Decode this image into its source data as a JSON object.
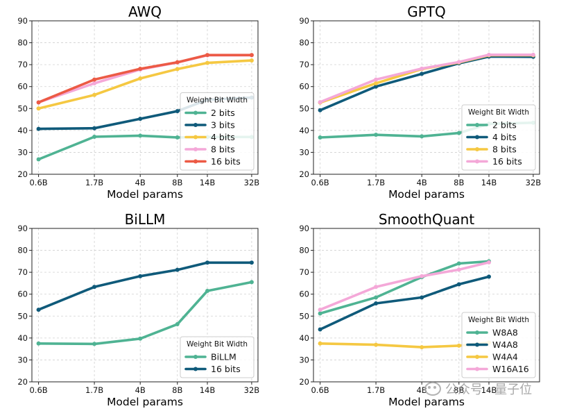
{
  "chart_data": [
    {
      "type": "line",
      "title": "AWQ",
      "xlabel": "Model params",
      "ylabel": "",
      "ylim": [
        20,
        90
      ],
      "yticks": [
        20,
        30,
        40,
        50,
        60,
        70,
        80,
        90
      ],
      "x_scale": "log",
      "x": [
        0.6,
        1.7,
        4,
        8,
        14,
        32
      ],
      "xtick_labels": [
        "0.6B",
        "1.7B",
        "4B",
        "8B",
        "14B",
        "32B"
      ],
      "grid": true,
      "legend_title": "Weight Bit Width",
      "legend_position": "lower-right",
      "series": [
        {
          "name": "2 bits",
          "color": "#4fb393",
          "values": [
            26.8,
            37.1,
            37.6,
            36.8,
            37.0,
            37.0
          ]
        },
        {
          "name": "3 bits",
          "color": "#0f5a7a",
          "values": [
            40.7,
            41.0,
            45.3,
            48.8,
            54.0,
            55.0
          ]
        },
        {
          "name": "4 bits",
          "color": "#f5c842",
          "values": [
            50.0,
            56.2,
            63.7,
            68.0,
            70.8,
            71.9
          ]
        },
        {
          "name": "8 bits",
          "color": "#f4a8d8",
          "values": [
            52.8,
            61.5,
            67.8,
            71.0,
            74.3,
            74.3
          ]
        },
        {
          "name": "16 bits",
          "color": "#ec5a45",
          "values": [
            52.8,
            63.2,
            68.1,
            71.1,
            74.4,
            74.4
          ]
        }
      ]
    },
    {
      "type": "line",
      "title": "GPTQ",
      "xlabel": "Model params",
      "ylabel": "",
      "ylim": [
        20,
        90
      ],
      "yticks": [
        20,
        30,
        40,
        50,
        60,
        70,
        80,
        90
      ],
      "x_scale": "log",
      "x": [
        0.6,
        1.7,
        4,
        8,
        14,
        32
      ],
      "xtick_labels": [
        "0.6B",
        "1.7B",
        "4B",
        "8B",
        "14B",
        "32B"
      ],
      "grid": true,
      "legend_title": "Weight Bit Width",
      "legend_position": "lower-right",
      "series": [
        {
          "name": "2 bits",
          "color": "#4fb393",
          "values": [
            36.8,
            38.0,
            37.3,
            38.8,
            43.0,
            43.5
          ]
        },
        {
          "name": "4 bits",
          "color": "#0f5a7a",
          "values": [
            49.2,
            60.0,
            65.8,
            70.6,
            73.7,
            73.6
          ]
        },
        {
          "name": "8 bits",
          "color": "#f5c842",
          "values": [
            52.7,
            61.5,
            68.0,
            71.0,
            74.3,
            74.3
          ]
        },
        {
          "name": "16 bits",
          "color": "#f4a8d8",
          "values": [
            52.9,
            63.2,
            68.2,
            71.2,
            74.5,
            74.5
          ]
        }
      ]
    },
    {
      "type": "line",
      "title": "BiLLM",
      "xlabel": "Model params",
      "ylabel": "",
      "ylim": [
        20,
        90
      ],
      "yticks": [
        20,
        30,
        40,
        50,
        60,
        70,
        80,
        90
      ],
      "x_scale": "log",
      "x": [
        0.6,
        1.7,
        4,
        8,
        14,
        32
      ],
      "xtick_labels": [
        "0.6B",
        "1.7B",
        "4B",
        "8B",
        "14B",
        "32B"
      ],
      "grid": true,
      "legend_title": "Weight Bit Width",
      "legend_position": "lower-right",
      "series": [
        {
          "name": "BiLLM",
          "color": "#4fb393",
          "values": [
            37.5,
            37.3,
            39.7,
            46.3,
            61.5,
            65.5
          ]
        },
        {
          "name": "16 bits",
          "color": "#0f5a7a",
          "values": [
            52.9,
            63.3,
            68.2,
            71.1,
            74.4,
            74.4
          ]
        }
      ]
    },
    {
      "type": "line",
      "title": "SmoothQuant",
      "xlabel": "Model params",
      "ylabel": "",
      "ylim": [
        20,
        90
      ],
      "yticks": [
        20,
        30,
        40,
        50,
        60,
        70,
        80,
        90
      ],
      "x_scale": "log",
      "x": [
        0.6,
        1.7,
        4,
        8,
        14
      ],
      "xtick_labels": [
        "0.6B",
        "1.7B",
        "4B",
        "8B",
        "14B"
      ],
      "grid": true,
      "legend_title": "Weight Bit Width",
      "legend_position": "lower-right",
      "series": [
        {
          "name": "W8A8",
          "color": "#4fb393",
          "values": [
            51.2,
            58.5,
            67.8,
            74.0,
            75.0
          ]
        },
        {
          "name": "W4A8",
          "color": "#0f5a7a",
          "values": [
            43.9,
            55.8,
            58.5,
            64.5,
            68.0
          ]
        },
        {
          "name": "W4A4",
          "color": "#f5c842",
          "values": [
            37.5,
            36.9,
            35.8,
            36.5,
            37.9
          ]
        },
        {
          "name": "W16A16",
          "color": "#f4a8d8",
          "values": [
            52.9,
            63.3,
            68.2,
            71.2,
            74.5
          ]
        }
      ]
    }
  ],
  "watermark": {
    "text": "公众号 · 量子位",
    "icon": "wechat-icon"
  }
}
